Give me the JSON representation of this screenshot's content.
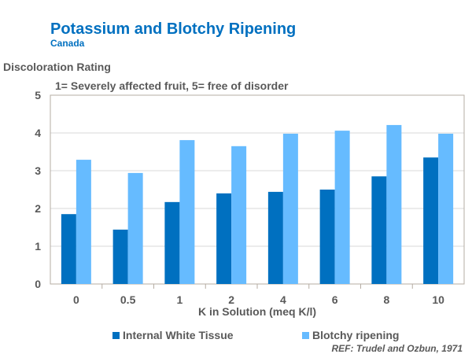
{
  "chart_data": {
    "type": "bar",
    "title": "Potassium and Blotchy Ripening",
    "subtitle": "Canada",
    "ylabel": "Discoloration Rating",
    "annotation": "1= Severely affected fruit, 5= free of disorder",
    "xlabel": "K in Solution (meq K/l)",
    "categories": [
      "0",
      "0.5",
      "1",
      "2",
      "4",
      "6",
      "8",
      "10"
    ],
    "ylim": [
      0,
      5
    ],
    "yticks": [
      "0",
      "1",
      "2",
      "3",
      "4",
      "5"
    ],
    "grid": true,
    "legend_position": "bottom",
    "series": [
      {
        "name": "Internal White Tissue",
        "color": "#0070c0",
        "values": [
          1.85,
          1.44,
          2.17,
          2.4,
          2.44,
          2.5,
          2.85,
          3.35
        ]
      },
      {
        "name": "Blotchy ripening",
        "color": "#66bbff",
        "values": [
          3.29,
          2.94,
          3.81,
          3.65,
          3.98,
          4.06,
          4.21,
          3.98
        ]
      }
    ],
    "reference": "REF: Trudel and Ozbun, 1971"
  }
}
